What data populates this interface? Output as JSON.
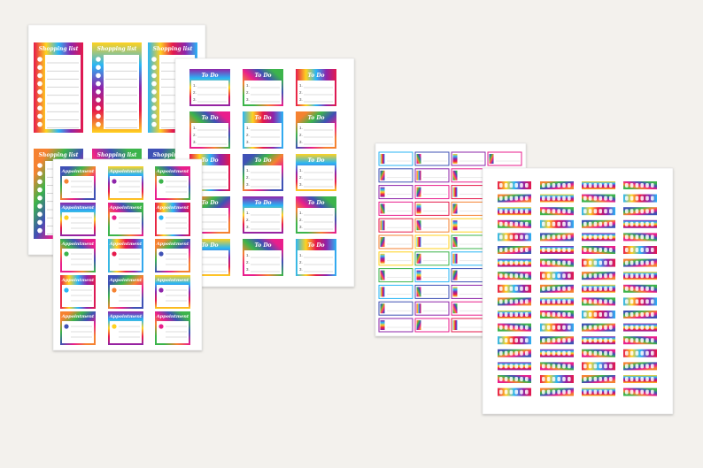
{
  "shopping_title": "Shopping list",
  "todo_title": "To Do",
  "appointment_title": "Appointment",
  "todo_numbers": [
    "1.",
    "2.",
    "3."
  ]
}
